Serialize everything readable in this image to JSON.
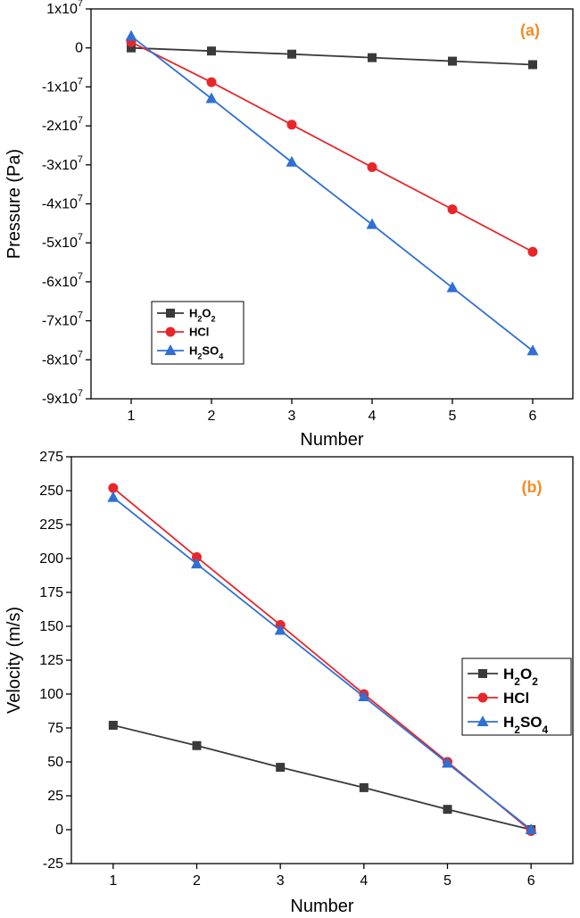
{
  "chart_data": [
    {
      "type": "line",
      "panel_label": "(a)",
      "xlabel": "Number",
      "ylabel": "Pressure (Pa)",
      "categories": [
        1,
        2,
        3,
        4,
        5,
        6
      ],
      "xlim": [
        0.5,
        6.5
      ],
      "ylim": [
        -90000000,
        10000000
      ],
      "y_ticks": [
        {
          "value": 10000000,
          "mantissa": "1",
          "exponent": "7",
          "zero": false
        },
        {
          "value": 0,
          "mantissa": "0",
          "exponent": "",
          "zero": true
        },
        {
          "value": -10000000,
          "mantissa": "-1",
          "exponent": "7",
          "zero": false
        },
        {
          "value": -20000000,
          "mantissa": "-2",
          "exponent": "7",
          "zero": false
        },
        {
          "value": -30000000,
          "mantissa": "-3",
          "exponent": "7",
          "zero": false
        },
        {
          "value": -40000000,
          "mantissa": "-4",
          "exponent": "7",
          "zero": false
        },
        {
          "value": -50000000,
          "mantissa": "-5",
          "exponent": "7",
          "zero": false
        },
        {
          "value": -60000000,
          "mantissa": "-6",
          "exponent": "7",
          "zero": false
        },
        {
          "value": -70000000,
          "mantissa": "-7",
          "exponent": "7",
          "zero": false
        },
        {
          "value": -80000000,
          "mantissa": "-8",
          "exponent": "7",
          "zero": false
        },
        {
          "value": -90000000,
          "mantissa": "-9",
          "exponent": "7",
          "zero": false
        }
      ],
      "x_ticks": [
        "1",
        "2",
        "3",
        "4",
        "5",
        "6"
      ],
      "legend_position": "lower-left",
      "series": [
        {
          "name": "H2O2",
          "label_parts": [
            "H",
            "2",
            "O",
            "2"
          ],
          "marker": "square",
          "color": "#3a3a3a",
          "values": [
            0,
            -800000,
            -1600000,
            -2500000,
            -3400000,
            -4300000
          ]
        },
        {
          "name": "HCl",
          "label_parts": [
            "HCl"
          ],
          "marker": "circle",
          "color": "#e8262a",
          "values": [
            1500000,
            -8800000,
            -19700000,
            -30600000,
            -41400000,
            -52300000
          ]
        },
        {
          "name": "H2SO4",
          "label_parts": [
            "H",
            "2",
            "SO",
            "4"
          ],
          "marker": "triangle",
          "color": "#2f6fd6",
          "values": [
            3000000,
            -13000000,
            -29300000,
            -45300000,
            -61500000,
            -77700000
          ]
        }
      ]
    },
    {
      "type": "line",
      "panel_label": "(b)",
      "xlabel": "Number",
      "ylabel": "Velocity (m/s)",
      "categories": [
        1,
        2,
        3,
        4,
        5,
        6
      ],
      "xlim": [
        0.5,
        6.5
      ],
      "ylim": [
        -25,
        275
      ],
      "y_ticks": [
        {
          "value": 275,
          "mantissa": "275",
          "exponent": "",
          "zero": false
        },
        {
          "value": 250,
          "mantissa": "250",
          "exponent": "",
          "zero": false
        },
        {
          "value": 225,
          "mantissa": "225",
          "exponent": "",
          "zero": false
        },
        {
          "value": 200,
          "mantissa": "200",
          "exponent": "",
          "zero": false
        },
        {
          "value": 175,
          "mantissa": "175",
          "exponent": "",
          "zero": false
        },
        {
          "value": 150,
          "mantissa": "150",
          "exponent": "",
          "zero": false
        },
        {
          "value": 125,
          "mantissa": "125",
          "exponent": "",
          "zero": false
        },
        {
          "value": 100,
          "mantissa": "100",
          "exponent": "",
          "zero": false
        },
        {
          "value": 75,
          "mantissa": "75",
          "exponent": "",
          "zero": false
        },
        {
          "value": 50,
          "mantissa": "50",
          "exponent": "",
          "zero": false
        },
        {
          "value": 25,
          "mantissa": "25",
          "exponent": "",
          "zero": false
        },
        {
          "value": 0,
          "mantissa": "0",
          "exponent": "",
          "zero": false
        },
        {
          "value": -25,
          "mantissa": "-25",
          "exponent": "",
          "zero": false
        }
      ],
      "x_ticks": [
        "1",
        "2",
        "3",
        "4",
        "5",
        "6"
      ],
      "legend_position": "middle-right",
      "series": [
        {
          "name": "H2O2",
          "label_parts": [
            "H",
            "2",
            "O",
            "2"
          ],
          "marker": "square",
          "color": "#3a3a3a",
          "values": [
            77,
            62,
            46,
            31,
            15,
            0
          ]
        },
        {
          "name": "HCl",
          "label_parts": [
            "HCl"
          ],
          "marker": "circle",
          "color": "#e8262a",
          "values": [
            252,
            201,
            151,
            100,
            50,
            -1
          ]
        },
        {
          "name": "H2SO4",
          "label_parts": [
            "H",
            "2",
            "SO",
            "4"
          ],
          "marker": "triangle",
          "color": "#2f6fd6",
          "values": [
            245,
            196,
            147,
            98,
            49,
            0
          ]
        }
      ]
    }
  ],
  "accent_color": "#f28c28"
}
